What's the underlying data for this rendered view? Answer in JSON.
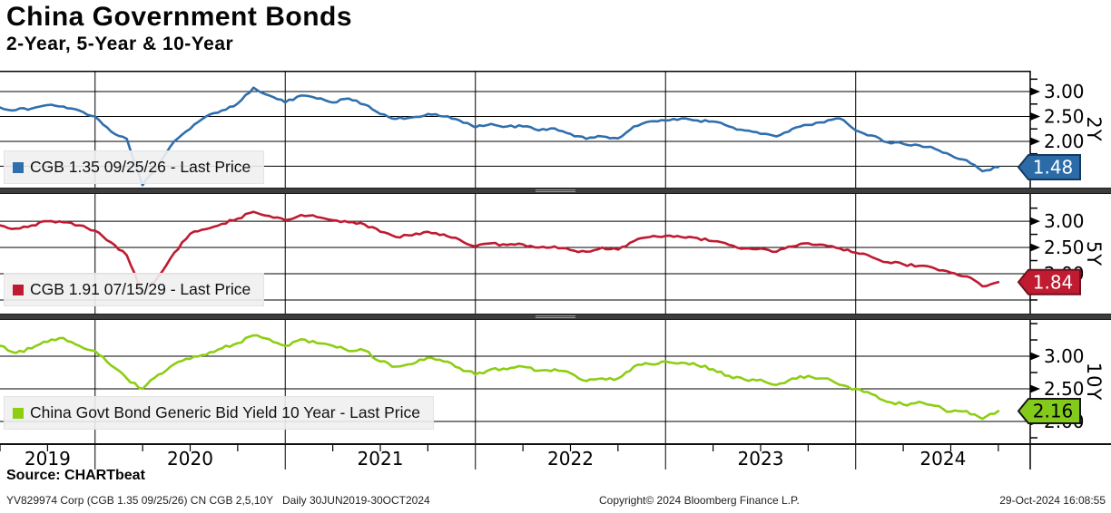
{
  "header": {
    "title": "China Government Bonds",
    "subtitle": "2-Year, 5-Year & 10-Year"
  },
  "chart_data": {
    "type": "line",
    "x_unit": "monthly points, daily-style line",
    "x_start": "2019-07",
    "x_end": "2024-10",
    "x_tick_labels": [
      "2019",
      "2020",
      "2021",
      "2022",
      "2023",
      "2024"
    ],
    "y_tick_labels": [
      "3.00",
      "2.50",
      "2.00"
    ],
    "grid": true,
    "legend_position": "bottom-left inside each panel",
    "panels": [
      {
        "axis_label": "2Y",
        "legend": "CGB 1.35 09/25/26 - Last Price",
        "last_price": "1.48",
        "color": "#2f6fad",
        "badge_fill": "#2b6ba8",
        "badge_border": "#15395c",
        "badge_text_color": "#ffffff",
        "ticks": [
          3.0,
          2.5,
          2.0
        ],
        "ylim": [
          1.07,
          3.42
        ],
        "values": [
          2.68,
          2.63,
          2.66,
          2.73,
          2.7,
          2.62,
          2.5,
          2.2,
          2.05,
          1.12,
          1.5,
          2.0,
          2.25,
          2.5,
          2.62,
          2.76,
          3.08,
          2.92,
          2.78,
          2.92,
          2.86,
          2.78,
          2.86,
          2.74,
          2.55,
          2.45,
          2.48,
          2.55,
          2.5,
          2.42,
          2.28,
          2.35,
          2.3,
          2.3,
          2.22,
          2.26,
          2.15,
          2.05,
          2.1,
          2.06,
          2.3,
          2.4,
          2.42,
          2.46,
          2.42,
          2.4,
          2.3,
          2.22,
          2.15,
          2.1,
          2.25,
          2.33,
          2.38,
          2.46,
          2.22,
          2.12,
          1.98,
          1.95,
          1.92,
          1.85,
          1.72,
          1.62,
          1.4,
          1.48
        ]
      },
      {
        "axis_label": "5Y",
        "legend": "CGB 1.91 07/15/29 - Last Price",
        "last_price": "1.84",
        "color": "#bf1a31",
        "badge_fill": "#c01b30",
        "badge_border": "#70101e",
        "badge_text_color": "#ffffff",
        "ticks": [
          3.0,
          2.5,
          2.0
        ],
        "ylim": [
          1.24,
          3.52
        ],
        "values": [
          2.92,
          2.86,
          2.92,
          3.0,
          2.98,
          2.92,
          2.82,
          2.6,
          2.35,
          1.62,
          1.95,
          2.4,
          2.76,
          2.85,
          2.95,
          3.05,
          3.18,
          3.1,
          3.02,
          3.12,
          3.08,
          3.02,
          2.98,
          2.94,
          2.8,
          2.7,
          2.73,
          2.8,
          2.75,
          2.65,
          2.52,
          2.58,
          2.55,
          2.56,
          2.5,
          2.52,
          2.45,
          2.42,
          2.5,
          2.46,
          2.62,
          2.7,
          2.72,
          2.7,
          2.68,
          2.62,
          2.55,
          2.48,
          2.48,
          2.42,
          2.52,
          2.58,
          2.55,
          2.48,
          2.4,
          2.32,
          2.22,
          2.18,
          2.15,
          2.1,
          2.02,
          1.95,
          1.76,
          1.84
        ]
      },
      {
        "axis_label": "10Y",
        "legend": "China Govt Bond Generic Bid Yield 10 Year - Last Price",
        "last_price": "2.16",
        "color": "#8cce12",
        "badge_fill": "#84ca1a",
        "badge_border": "#161616",
        "badge_text_color": "#000000",
        "ticks": [
          3.0,
          2.5,
          2.0
        ],
        "ylim": [
          1.667,
          3.556
        ],
        "values": [
          3.16,
          3.05,
          3.12,
          3.22,
          3.28,
          3.16,
          3.08,
          2.86,
          2.66,
          2.5,
          2.72,
          2.88,
          2.96,
          3.02,
          3.12,
          3.2,
          3.32,
          3.26,
          3.16,
          3.26,
          3.2,
          3.16,
          3.08,
          3.09,
          2.92,
          2.84,
          2.88,
          2.98,
          2.92,
          2.82,
          2.72,
          2.8,
          2.8,
          2.84,
          2.78,
          2.8,
          2.74,
          2.62,
          2.66,
          2.66,
          2.84,
          2.88,
          2.92,
          2.9,
          2.86,
          2.8,
          2.7,
          2.64,
          2.64,
          2.56,
          2.66,
          2.7,
          2.66,
          2.56,
          2.5,
          2.42,
          2.3,
          2.26,
          2.3,
          2.24,
          2.15,
          2.16,
          2.04,
          2.16
        ]
      }
    ]
  },
  "footer": {
    "source": "Source: CHARTbeat",
    "security_line": "YV829974 Corp (CGB 1.35 09/25/26) CN CGB 2,5,10Y   Daily 30JUN2019-30OCT2024",
    "copyright": "Copyright© 2024 Bloomberg Finance L.P.",
    "timestamp": "29-Oct-2024 16:08:55"
  }
}
